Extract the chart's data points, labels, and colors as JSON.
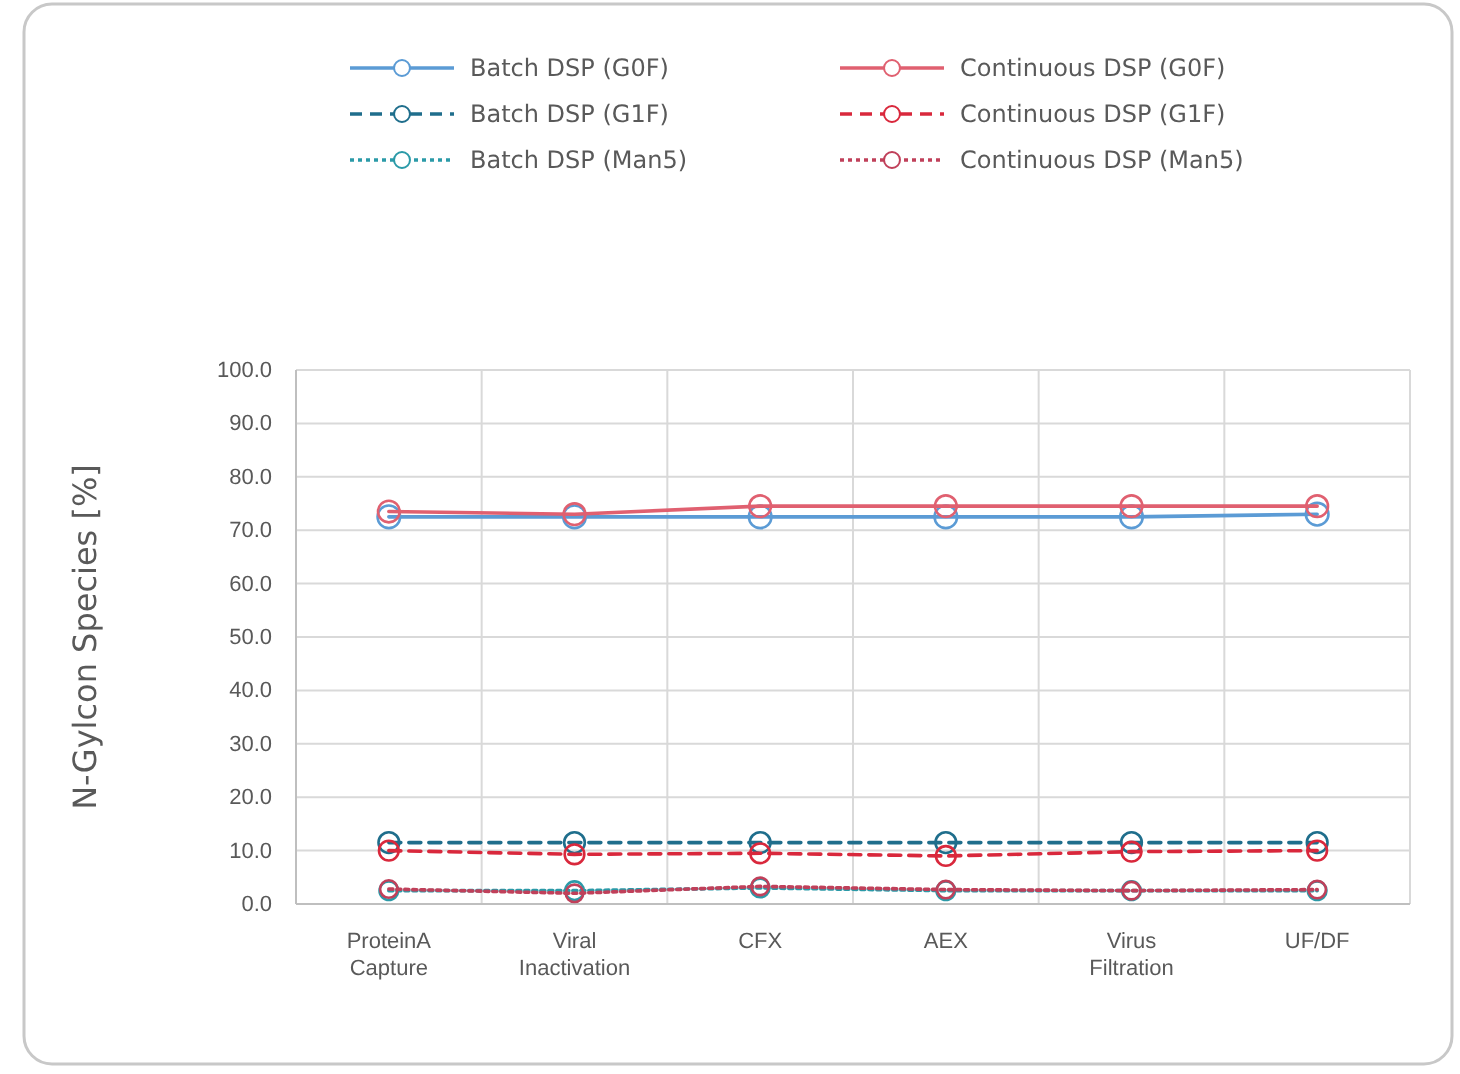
{
  "chart_data": {
    "type": "line",
    "ylabel": "N-Gylcon Species [%]",
    "categories": [
      "ProteinA Capture",
      "Viral Inactivation",
      "CFX",
      "AEX",
      "Virus Filtration",
      "UF/DF"
    ],
    "series": [
      {
        "name": "Batch DSP (G0F)",
        "color": "#5b9bd5",
        "line_style": "solid",
        "values": [
          72.5,
          72.5,
          72.5,
          72.5,
          72.5,
          73.0
        ]
      },
      {
        "name": "Continuous DSP (G0F)",
        "color": "#e06070",
        "line_style": "solid",
        "values": [
          73.5,
          73.0,
          74.5,
          74.5,
          74.5,
          74.5
        ]
      },
      {
        "name": "Batch DSP (G1F)",
        "color": "#1f6e8c",
        "line_style": "dashed",
        "values": [
          11.5,
          11.5,
          11.5,
          11.5,
          11.5,
          11.5
        ]
      },
      {
        "name": "Continuous DSP (G1F)",
        "color": "#d9283c",
        "line_style": "dashed",
        "values": [
          10.0,
          9.3,
          9.5,
          9.0,
          9.8,
          10.0
        ]
      },
      {
        "name": "Batch DSP (Man5)",
        "color": "#2b9aa8",
        "line_style": "dotted",
        "values": [
          2.5,
          2.5,
          3.0,
          2.5,
          2.5,
          2.5
        ]
      },
      {
        "name": "Continuous DSP (Man5)",
        "color": "#c0405a",
        "line_style": "dotted",
        "values": [
          2.8,
          2.0,
          3.3,
          2.7,
          2.5,
          2.7
        ]
      }
    ],
    "ylim": [
      0,
      100
    ],
    "yticks": [
      {
        "value": 0,
        "label": "0.0"
      },
      {
        "value": 10,
        "label": "10.0"
      },
      {
        "value": 20,
        "label": "20.0"
      },
      {
        "value": 30,
        "label": "30.0"
      },
      {
        "value": 40,
        "label": "40.0"
      },
      {
        "value": 50,
        "label": "50.0"
      },
      {
        "value": 60,
        "label": "60.0"
      },
      {
        "value": 70,
        "label": "70.0"
      },
      {
        "value": 80,
        "label": "80.0"
      },
      {
        "value": 90,
        "label": "90.0"
      },
      {
        "value": 100,
        "label": "100.0"
      }
    ],
    "grid": true,
    "legend": "top",
    "marker": "circle"
  }
}
